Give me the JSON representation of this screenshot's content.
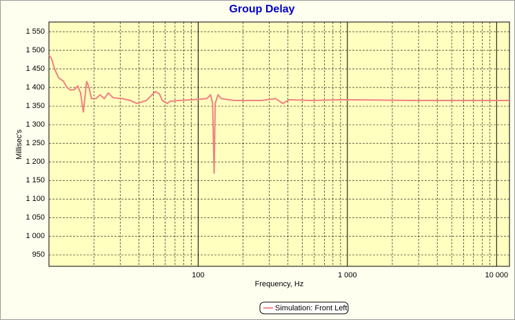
{
  "chart_data": {
    "type": "line",
    "title": "Group Delay",
    "xlabel": "Frequency, Hz",
    "ylabel": "Millisec's",
    "xscale": "log",
    "grid": true,
    "legend": "bottom",
    "xlim": [
      10,
      12200
    ],
    "ylim": [
      919,
      1576
    ],
    "xticks": [
      100,
      {
        "value": 1000,
        "label": "1 000"
      },
      {
        "value": 10000,
        "label": "10 000"
      }
    ],
    "yticks": [
      950,
      {
        "value": 1000,
        "label": "1 000"
      },
      {
        "value": 1050,
        "label": "1 050"
      },
      {
        "value": 1100,
        "label": "1 100"
      },
      {
        "value": 1150,
        "label": "1 150"
      },
      {
        "value": 1200,
        "label": "1 200"
      },
      {
        "value": 1250,
        "label": "1 250"
      },
      {
        "value": 1300,
        "label": "1 300"
      },
      {
        "value": 1350,
        "label": "1 350"
      },
      {
        "value": 1400,
        "label": "1 400"
      },
      {
        "value": 1450,
        "label": "1 450"
      },
      {
        "value": 1500,
        "label": "1 500"
      },
      {
        "value": 1550,
        "label": "1 550"
      }
    ],
    "x": [
      10,
      10.4,
      10.9,
      11.6,
      12.5,
      13.2,
      13.9,
      14.8,
      15.6,
      16.3,
      17.0,
      17.9,
      18.6,
      19.3,
      20.7,
      22,
      23.5,
      25,
      27,
      31,
      35,
      39,
      45,
      48,
      51.6,
      55,
      57.5,
      62,
      65,
      74,
      92,
      114,
      121,
      125,
      128,
      130,
      136,
      143,
      174,
      266,
      330,
      369,
      408,
      563,
      958,
      2766,
      12200
    ],
    "series": [
      {
        "name": "Simulation: Front Left",
        "color": "#f08080",
        "values": [
          1487,
          1478,
          1450,
          1426,
          1417,
          1400,
          1393,
          1394,
          1404,
          1385,
          1333,
          1417,
          1398,
          1370,
          1370,
          1380,
          1370,
          1385,
          1372,
          1370,
          1365,
          1357,
          1365,
          1376,
          1389,
          1383,
          1365,
          1357,
          1363,
          1365,
          1367,
          1370,
          1380,
          1357,
          1168,
          1357,
          1380,
          1370,
          1365,
          1365,
          1370,
          1357,
          1367,
          1365,
          1367,
          1365,
          1365
        ]
      }
    ]
  }
}
